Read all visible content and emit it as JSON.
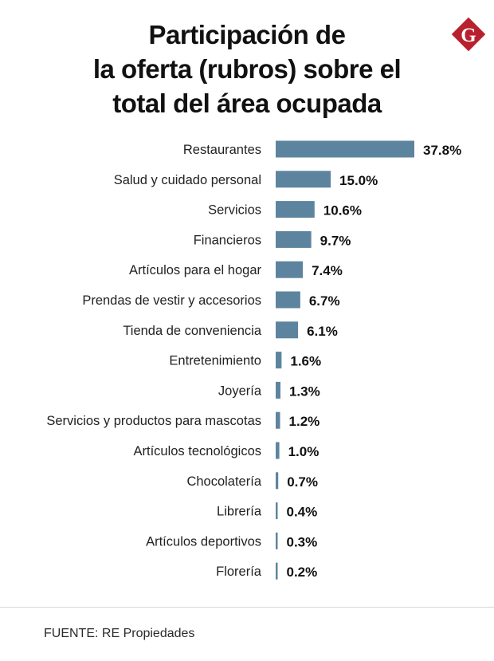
{
  "header": {
    "title_lines": [
      "Participación de",
      "la oferta (rubros) sobre el",
      "total del área ocupada"
    ]
  },
  "logo": {
    "letter": "G",
    "color": "#b8202e"
  },
  "chart_data": {
    "type": "bar",
    "orientation": "horizontal",
    "title": "Participación de la oferta (rubros) sobre el total del área ocupada",
    "categories": [
      "Restaurantes",
      "Salud y cuidado personal",
      "Servicios",
      "Financieros",
      "Artículos para el hogar",
      "Prendas de vestir y accesorios",
      "Tienda de conveniencia",
      "Entretenimiento",
      "Joyería",
      "Servicios y productos para mascotas",
      "Artículos tecnológicos",
      "Chocolatería",
      "Librería",
      "Artículos deportivos",
      "Florería"
    ],
    "values": [
      37.8,
      15.0,
      10.6,
      9.7,
      7.4,
      6.7,
      6.1,
      1.6,
      1.3,
      1.2,
      1.0,
      0.7,
      0.4,
      0.3,
      0.2
    ],
    "value_labels": [
      "37.8%",
      "15.0%",
      "10.6%",
      "9.7%",
      "7.4%",
      "6.7%",
      "6.1%",
      "1.6%",
      "1.3%",
      "1.2%",
      "1.0%",
      "0.7%",
      "0.4%",
      "0.3%",
      "0.2%"
    ],
    "unit": "%",
    "bar_color": "#5d849f",
    "xlim": [
      0,
      37.8
    ],
    "grid": false
  },
  "footer": {
    "source": "FUENTE: RE Propiedades"
  }
}
